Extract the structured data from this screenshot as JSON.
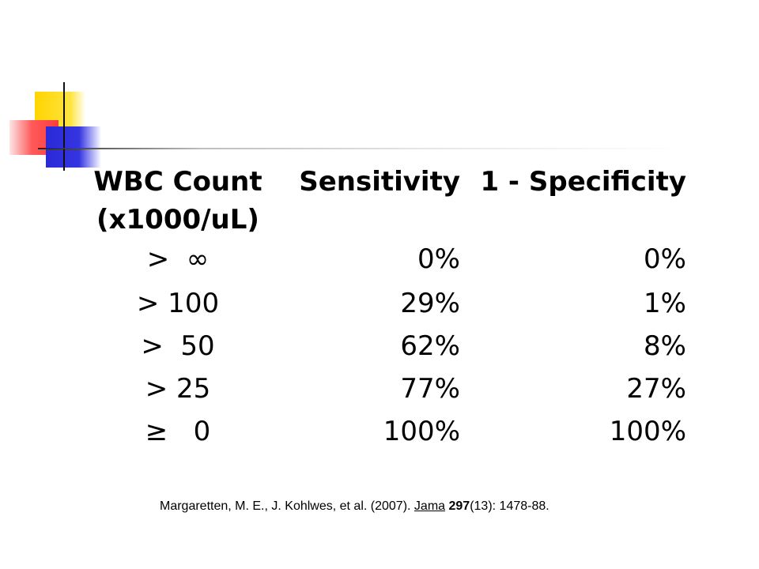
{
  "table": {
    "headers": {
      "wbc_line1": "WBC Count",
      "wbc_line2": "(x1000/uL)",
      "sensitivity": "Sensitivity",
      "one_minus_specificity": "1 - Specificity"
    },
    "rows": [
      {
        "wbc": ">  ∞",
        "sensitivity": "0%",
        "one_minus_specificity": "0%"
      },
      {
        "wbc": "> 100",
        "sensitivity": "29%",
        "one_minus_specificity": "1%"
      },
      {
        "wbc": ">  50",
        "sensitivity": "62%",
        "one_minus_specificity": "8%"
      },
      {
        "wbc": "> 25",
        "sensitivity": "77%",
        "one_minus_specificity": "27%"
      },
      {
        "wbc": "≥   0",
        "sensitivity": "100%",
        "one_minus_specificity": "100%"
      }
    ]
  },
  "citation": {
    "authors": "Margaretten, M. E., J. Kohlwes, et al. (2007). ",
    "journal": "Jama",
    "sep": " ",
    "volume": "297",
    "rest": "(13): 1478-88."
  },
  "colors": {
    "yellow": "#ffd400",
    "red": "#ff3b3b",
    "blue": "#2a2ad8"
  }
}
